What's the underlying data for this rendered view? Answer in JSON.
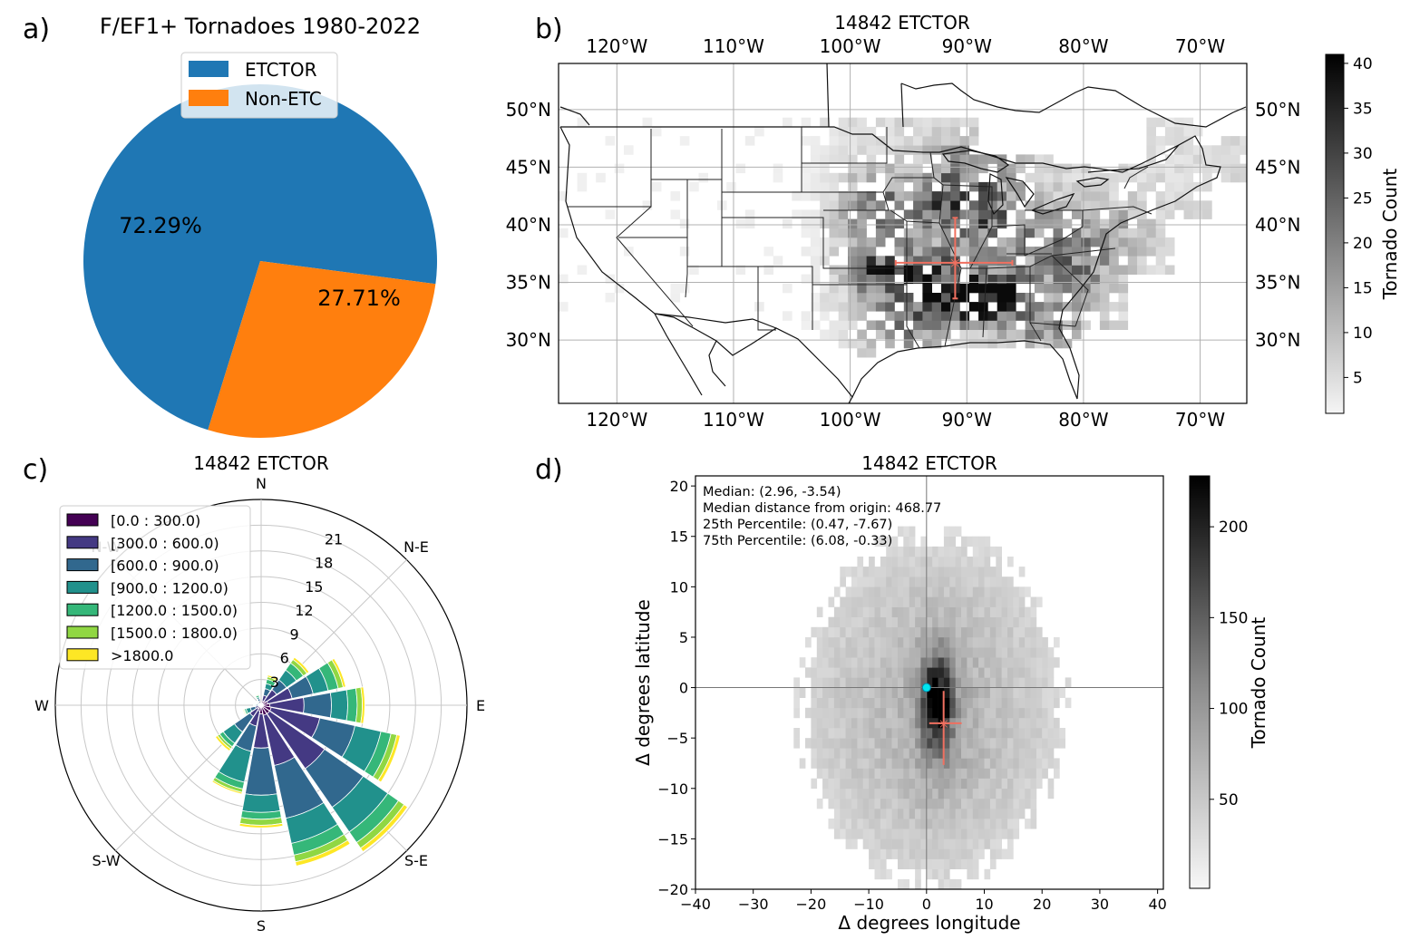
{
  "panel_labels": {
    "a": "a)",
    "b": "b)",
    "c": "c)",
    "d": "d)"
  },
  "colors": {
    "etctor": "#1f77b4",
    "non_etc": "#ff7f0e",
    "median_marker": "#f07060",
    "origin_marker": "#00e5ee",
    "viridis": [
      "#440154",
      "#443983",
      "#31688e",
      "#21918c",
      "#35b779",
      "#90d743",
      "#fde725"
    ]
  },
  "chart_data": [
    {
      "id": "a",
      "type": "pie",
      "title": "F/EF1+ Tornadoes 1980-2022",
      "labels": [
        "ETCTOR",
        "Non-ETC"
      ],
      "values": [
        72.29,
        27.71
      ],
      "value_labels": [
        "72.29%",
        "27.71%"
      ],
      "legend_location": "top-center"
    },
    {
      "id": "b",
      "type": "heatmap",
      "title": "14842 ETCTOR",
      "subject": "map of tornado counts over the contiguous United States",
      "x_ticks": [
        "120°W",
        "110°W",
        "100°W",
        "90°W",
        "80°W",
        "70°W"
      ],
      "x_tick_values": [
        -120,
        -110,
        -100,
        -90,
        -80,
        -70
      ],
      "y_ticks": [
        "50°N",
        "45°N",
        "40°N",
        "35°N",
        "30°N"
      ],
      "y_tick_values": [
        50,
        45,
        40,
        35,
        30
      ],
      "xlim": [
        -125,
        -66
      ],
      "ylim": [
        24.5,
        54
      ],
      "median_center": {
        "lon": -91,
        "lat": 36.7
      },
      "median_error_lon": [
        -96.1,
        -86.1
      ],
      "median_error_lat": [
        33.6,
        40.6
      ],
      "colorbar": {
        "label": "Tornado Count",
        "ticks": [
          5,
          10,
          15,
          20,
          25,
          30,
          35,
          40
        ],
        "range": [
          1,
          41
        ]
      }
    },
    {
      "id": "c",
      "type": "bar",
      "subtype": "polar-windrose",
      "title": "14842 ETCTOR",
      "directions": [
        "N",
        "N-E",
        "E",
        "S-E",
        "S",
        "S-W",
        "W",
        "N-W"
      ],
      "radial_ticks": [
        3,
        6,
        9,
        12,
        15,
        18,
        21
      ],
      "rmax": 24,
      "legend_location": "upper-left",
      "bin_labels": [
        "[0.0 : 300.0)",
        "[300.0 : 600.0)",
        "[600.0 : 900.0)",
        "[900.0 : 1200.0)",
        "[1200.0 : 1500.0)",
        "[1500.0 : 1800.0)",
        ">1800.0"
      ],
      "sectors": [
        {
          "bearing": 22.5,
          "cumulative": [
            0.5,
            1.2,
            2.0,
            2.6,
            3.1,
            3.4,
            3.6
          ]
        },
        {
          "bearing": 45,
          "cumulative": [
            0.6,
            2.2,
            3.6,
            5.0,
            6.0,
            6.5,
            6.8
          ]
        },
        {
          "bearing": 67.5,
          "cumulative": [
            0.8,
            3.7,
            6.2,
            8.0,
            9.2,
            9.8,
            10.1
          ]
        },
        {
          "bearing": 90,
          "cumulative": [
            1.0,
            5.0,
            8.2,
            10.1,
            11.2,
            11.8,
            12.1
          ]
        },
        {
          "bearing": 112.5,
          "cumulative": [
            1.2,
            7.0,
            11.2,
            14.3,
            15.5,
            16.2,
            16.6
          ]
        },
        {
          "bearing": 135,
          "cumulative": [
            1.2,
            9.0,
            14.5,
            18.0,
            19.5,
            20.3,
            20.8
          ]
        },
        {
          "bearing": 157.5,
          "cumulative": [
            1.2,
            7.2,
            13.5,
            16.5,
            17.9,
            18.7,
            19.2
          ]
        },
        {
          "bearing": 180,
          "cumulative": [
            1.0,
            5.0,
            10.5,
            12.5,
            13.3,
            14.0,
            14.3
          ]
        },
        {
          "bearing": 202.5,
          "cumulative": [
            0.7,
            2.5,
            5.5,
            9.2,
            10.0,
            10.4,
            10.6
          ]
        },
        {
          "bearing": 225,
          "cumulative": [
            0.5,
            1.6,
            3.8,
            5.4,
            5.9,
            6.2,
            6.5
          ]
        },
        {
          "bearing": 247.5,
          "cumulative": [
            0.3,
            0.7,
            1.3,
            1.8,
            2.0,
            2.1,
            2.2
          ]
        },
        {
          "bearing": 270,
          "cumulative": [
            0.2,
            0.4,
            0.6,
            0.7,
            0.8,
            0.85,
            0.9
          ]
        },
        {
          "bearing": 292.5,
          "cumulative": [
            0.15,
            0.3,
            0.4,
            0.5,
            0.55,
            0.6,
            0.65
          ]
        },
        {
          "bearing": 315,
          "cumulative": [
            0.15,
            0.3,
            0.45,
            0.55,
            0.6,
            0.65,
            0.7
          ]
        },
        {
          "bearing": 337.5,
          "cumulative": [
            0.2,
            0.5,
            0.8,
            1.0,
            1.2,
            1.3,
            1.35
          ]
        }
      ]
    },
    {
      "id": "d",
      "type": "heatmap",
      "title": "14842 ETCTOR",
      "xlabel": "Δ degrees longitude",
      "ylabel": "Δ degrees latitude",
      "xlim": [
        -40,
        41
      ],
      "ylim": [
        -20,
        21
      ],
      "x_ticks": [
        -40,
        -30,
        -20,
        -10,
        0,
        10,
        20,
        30,
        40
      ],
      "x_tick_labels": [
        "−40",
        "−30",
        "−20",
        "−10",
        "0",
        "10",
        "20",
        "30",
        "40"
      ],
      "y_ticks": [
        -20,
        -15,
        -10,
        -5,
        0,
        5,
        10,
        15,
        20
      ],
      "y_tick_labels": [
        "−20",
        "−15",
        "−10",
        "−5",
        "0",
        "5",
        "10",
        "15",
        "20"
      ],
      "annotations": [
        "Median: (2.96, -3.54)",
        "Median distance from origin: 468.77",
        "25th Percentile: (0.47, -7.67)",
        "75th Percentile: (6.08, -0.33)"
      ],
      "origin": {
        "x": 0,
        "y": 0
      },
      "median": {
        "x": 2.96,
        "y": -3.54
      },
      "p25": {
        "x": 0.47,
        "y": -7.67
      },
      "p75": {
        "x": 6.08,
        "y": -0.33
      },
      "colorbar": {
        "label": "Tornado Count",
        "ticks": [
          50,
          100,
          150,
          200
        ],
        "range": [
          1,
          228
        ]
      }
    }
  ]
}
